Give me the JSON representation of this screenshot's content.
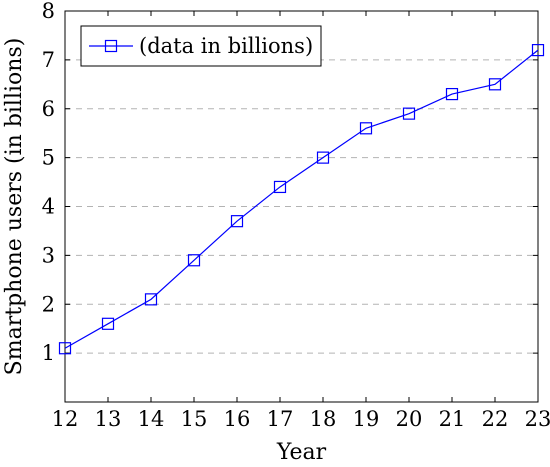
{
  "chart_data": {
    "type": "line",
    "title": "",
    "xlabel": "Year",
    "ylabel": "Smartphone users (in billions)",
    "xlim": [
      12,
      23
    ],
    "ylim": [
      0,
      8
    ],
    "x_ticks": [
      "12",
      "13",
      "14",
      "15",
      "16",
      "17",
      "18",
      "19",
      "20",
      "21",
      "22",
      "23"
    ],
    "y_ticks": [
      "1",
      "2",
      "3",
      "4",
      "5",
      "6",
      "7",
      "8"
    ],
    "grid": "horizontal dashed",
    "legend_position": "top-left",
    "series": [
      {
        "name": "(data in billions)",
        "color": "#0000ff",
        "marker": "square",
        "x": [
          12,
          13,
          14,
          15,
          16,
          17,
          18,
          19,
          20,
          21,
          22,
          23
        ],
        "y": [
          1.1,
          1.6,
          2.1,
          2.9,
          3.7,
          4.4,
          5.0,
          5.6,
          5.9,
          6.3,
          6.5,
          7.2
        ]
      }
    ]
  }
}
